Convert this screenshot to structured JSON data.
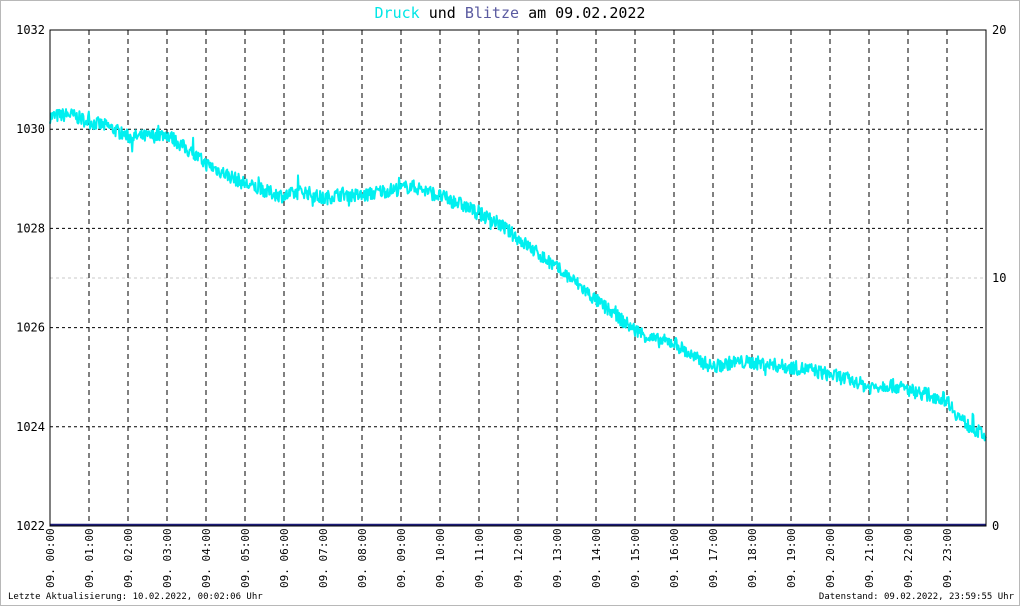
{
  "title": {
    "series1": "Druck",
    "word_und": "und",
    "series2": "Blitze",
    "word_am": "am",
    "date": "09.02.2022",
    "series1_color": "#00f0f0",
    "series2_color": "#5a5aa0"
  },
  "footer": {
    "left": "Letzte Aktualisierung: 10.02.2022, 00:02:06 Uhr",
    "right": "Datenstand: 09.02.2022, 23:59:55 Uhr"
  },
  "chart_data": {
    "type": "line",
    "grid": true,
    "y_left": {
      "min": 1022,
      "max": 1032,
      "ticks": [
        "1032",
        "1030",
        "1028",
        "1026",
        "1024",
        "1022"
      ]
    },
    "y_right": {
      "min": 0,
      "max": 20,
      "ticks": [
        "20",
        "10",
        "0"
      ]
    },
    "x_labels": [
      "09. 00:00",
      "09. 01:00",
      "09. 02:00",
      "09. 03:00",
      "09. 04:00",
      "09. 05:00",
      "09. 06:00",
      "09. 07:00",
      "09. 08:00",
      "09. 09:00",
      "09. 10:00",
      "09. 11:00",
      "09. 12:00",
      "09. 13:00",
      "09. 14:00",
      "09. 15:00",
      "09. 16:00",
      "09. 17:00",
      "09. 18:00",
      "09. 19:00",
      "09. 20:00",
      "09. 21:00",
      "09. 22:00",
      "09. 23:00"
    ],
    "series": [
      {
        "name": "Druck",
        "axis": "left",
        "color": "#00f0f0",
        "x_hours": [
          0,
          0.5,
          1,
          1.5,
          2,
          2.5,
          3,
          3.5,
          4,
          4.5,
          5,
          5.5,
          6,
          6.5,
          7,
          7.5,
          8,
          8.5,
          9,
          9.25,
          9.5,
          10,
          10.5,
          11,
          11.5,
          12,
          12.5,
          13,
          13.5,
          14,
          14.5,
          15,
          15.5,
          16,
          16.5,
          17,
          17.5,
          18,
          18.5,
          19,
          19.5,
          20,
          20.5,
          21,
          21.5,
          22,
          22.5,
          23,
          23.25,
          23.5,
          24
        ],
        "values": [
          1030.25,
          1030.3,
          1030.15,
          1030.05,
          1029.85,
          1029.85,
          1029.9,
          1029.6,
          1029.3,
          1029.1,
          1028.9,
          1028.75,
          1028.65,
          1028.75,
          1028.6,
          1028.7,
          1028.65,
          1028.75,
          1028.8,
          1028.85,
          1028.8,
          1028.65,
          1028.5,
          1028.3,
          1028.1,
          1027.8,
          1027.5,
          1027.2,
          1026.9,
          1026.55,
          1026.25,
          1025.95,
          1025.75,
          1025.7,
          1025.4,
          1025.2,
          1025.3,
          1025.3,
          1025.25,
          1025.2,
          1025.15,
          1025.05,
          1024.95,
          1024.8,
          1024.85,
          1024.75,
          1024.65,
          1024.55,
          1024.25,
          1024.05,
          1023.8
        ]
      },
      {
        "name": "Blitze",
        "axis": "right",
        "color": "#1c1c78",
        "x_hours": [
          0,
          24
        ],
        "values": [
          0,
          0
        ]
      }
    ]
  }
}
